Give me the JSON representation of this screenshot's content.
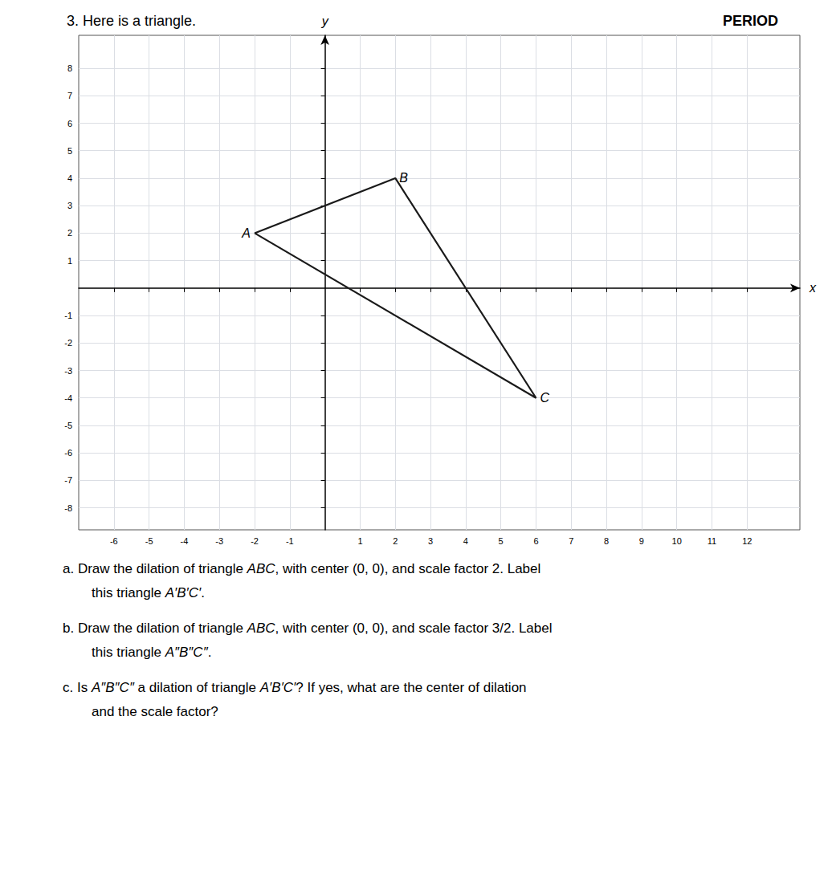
{
  "chart_data": {
    "type": "polygon",
    "title": "3. Here is a triangle.",
    "subtitle": "PERIOD",
    "x_label": "x",
    "y_label": "y",
    "x": [
      -2,
      2,
      6
    ],
    "values": [
      2,
      4,
      -4
    ],
    "labels": [
      "A",
      "B",
      "C"
    ],
    "color": "#1a1a1a",
    "xlim": [
      -7,
      13.5
    ],
    "ylim": [
      -8.8,
      9.2
    ],
    "xticks": [
      -6,
      -5,
      -4,
      -3,
      -2,
      -1,
      1,
      2,
      3,
      4,
      5,
      6,
      7,
      8,
      9,
      10,
      11,
      12
    ],
    "yticks": [
      -8,
      -7,
      -6,
      -5,
      -4,
      -3,
      -2,
      -1,
      1,
      2,
      3,
      4,
      5,
      6,
      7,
      8
    ],
    "grid": true,
    "annotations": [
      "a. Draw the dilation of triangle ABC, with center (0, 0), and scale factor 2. Label",
      "this triangle A′B′C′.",
      "b. Draw the dilation of triangle ABC, with center (0, 0), and scale factor 3/2. Label",
      "this triangle A″B″C″.",
      "c. Is A″B″C″ a dilation of triangle A′B′C′? If yes, what are the center of dilation",
      "and the scale factor?"
    ]
  }
}
